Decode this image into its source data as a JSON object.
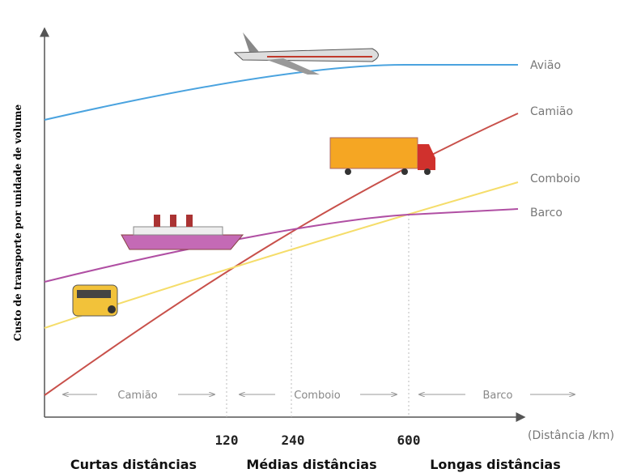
{
  "y_axis_label": "Custo de transporte por unidade de volume",
  "x_axis_label": "(Distância /km)",
  "x_marks": [
    "120",
    "240",
    "600"
  ],
  "series_labels": [
    "Avião",
    "Camião",
    "Comboio",
    "Barco"
  ],
  "ranges": [
    "Camião",
    "Comboio",
    "Barco"
  ],
  "zones": [
    "Curtas distâncias",
    "Médias distâncias",
    "Longas distâncias"
  ]
}
